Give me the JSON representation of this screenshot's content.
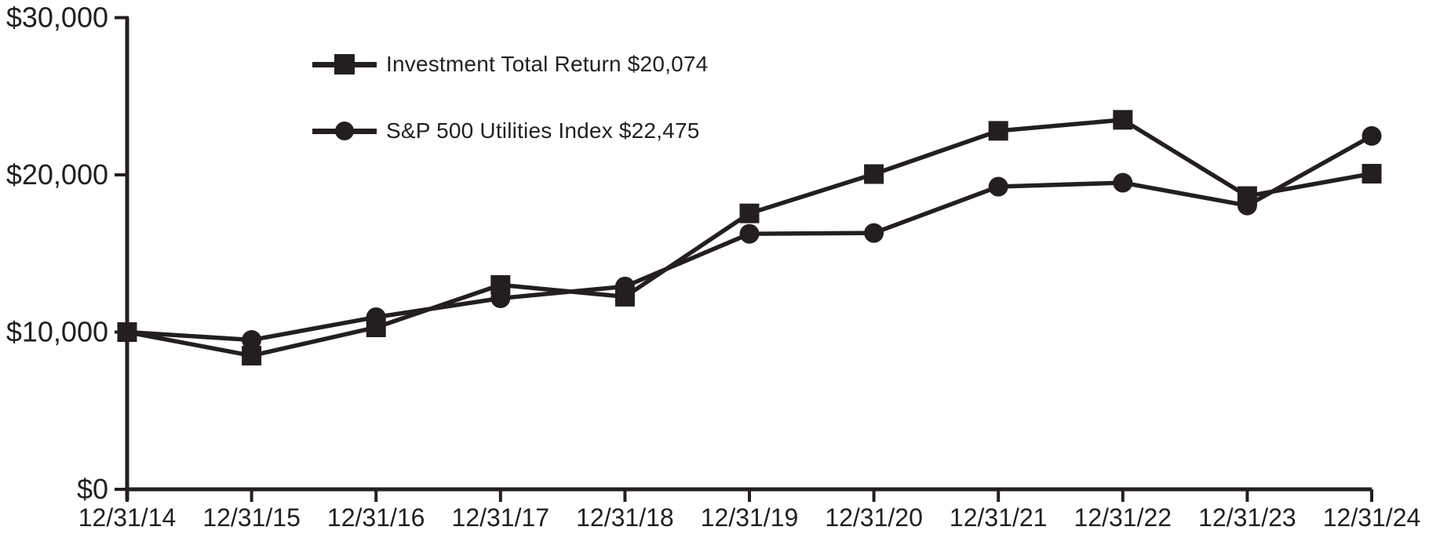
{
  "page": {
    "background": "#ffffff"
  },
  "chart_data": {
    "type": "line",
    "title": "",
    "xlabel": "",
    "ylabel": "",
    "categories": [
      "12/31/14",
      "12/31/15",
      "12/31/16",
      "12/31/17",
      "12/31/18",
      "12/31/19",
      "12/31/20",
      "12/31/21",
      "12/31/22",
      "12/31/23",
      "12/31/24"
    ],
    "ylim": [
      0,
      30000
    ],
    "y_ticks": [
      {
        "value": 0,
        "label": "$0"
      },
      {
        "value": 10000,
        "label": "$10,000"
      },
      {
        "value": 20000,
        "label": "$20,000"
      },
      {
        "value": 30000,
        "label": "$30,000"
      }
    ],
    "grid": false,
    "legend_position": "inside-top-left",
    "colors": {
      "line": "#231f20",
      "text": "#231f20",
      "background": "#ffffff"
    },
    "series": [
      {
        "name": "Investment Total Return $20,074",
        "marker": "square",
        "values": [
          10000,
          8500,
          10300,
          13000,
          12250,
          17550,
          20050,
          22800,
          23500,
          18650,
          20074
        ]
      },
      {
        "name": "S&P 500 Utilities Index $22,475",
        "marker": "circle",
        "values": [
          10000,
          9500,
          10950,
          12150,
          12900,
          16250,
          16300,
          19250,
          19500,
          18050,
          22475
        ]
      }
    ]
  }
}
